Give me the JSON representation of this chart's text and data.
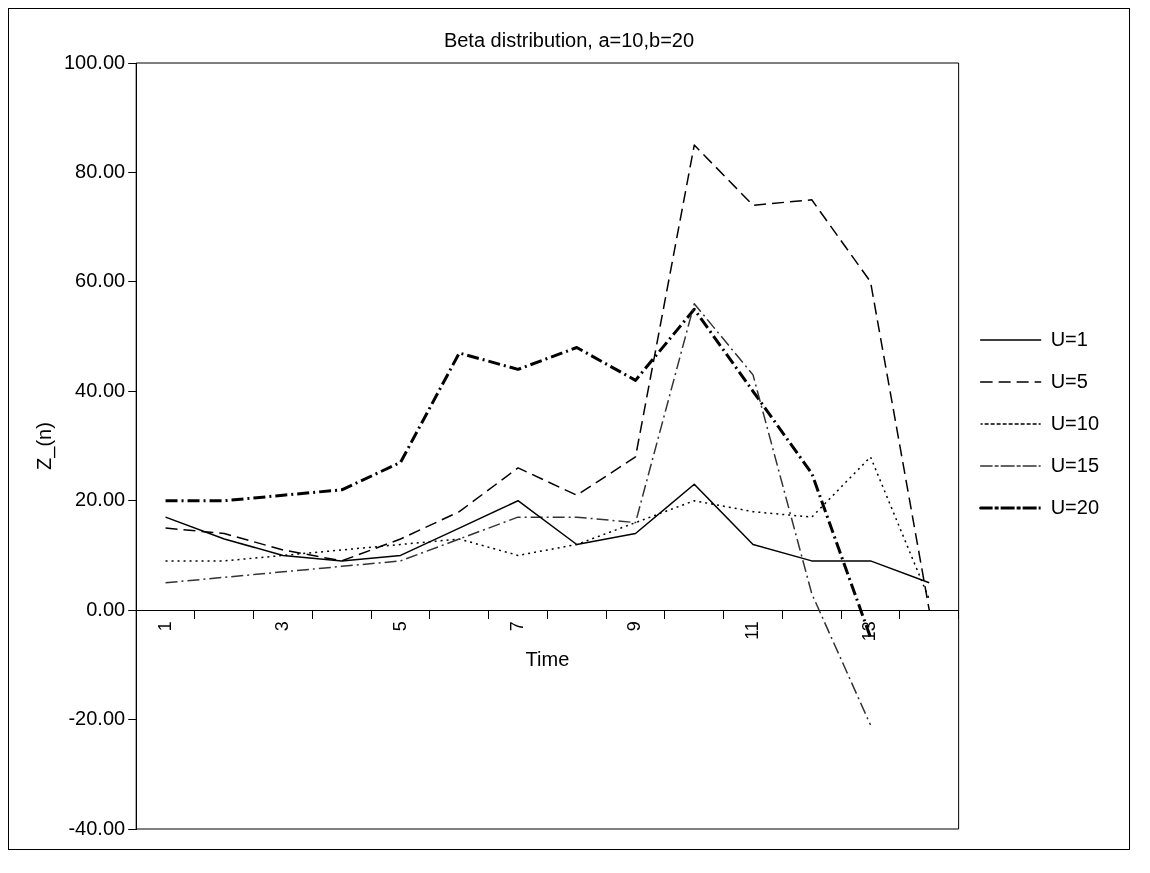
{
  "chart_data": {
    "type": "line",
    "title": "Beta distribution, a=10,b=20",
    "xlabel": "Time",
    "ylabel": "Z_(n)",
    "categories": [
      "1",
      null,
      "3",
      null,
      "5",
      null,
      "7",
      null,
      "9",
      null,
      "11",
      null,
      "13",
      null
    ],
    "ylim": [
      -40,
      100
    ],
    "yticks": [
      {
        "value": -40,
        "label": "-40.00"
      },
      {
        "value": -20,
        "label": "-20.00"
      },
      {
        "value": 0,
        "label": "0.00"
      },
      {
        "value": 20,
        "label": "20.00"
      },
      {
        "value": 40,
        "label": "40.00"
      },
      {
        "value": 60,
        "label": "60.00"
      },
      {
        "value": 80,
        "label": "80.00"
      },
      {
        "value": 100,
        "label": "100.00"
      }
    ],
    "grid": false,
    "legend": "right",
    "marker": "none",
    "series": [
      {
        "name": "U=1",
        "color": "#000000",
        "line_style": "solid",
        "values": [
          17,
          13,
          10,
          9,
          10,
          15,
          20,
          12,
          14,
          23,
          12,
          9,
          9,
          5
        ]
      },
      {
        "name": "U=5",
        "color": "#000000",
        "line_style": "dashed",
        "values": [
          15,
          14,
          11,
          9,
          13,
          18,
          26,
          21,
          28,
          85,
          74,
          75,
          60,
          0
        ]
      },
      {
        "name": "U=10",
        "color": "#000000",
        "line_style": "dotted",
        "values": [
          9,
          9,
          10,
          11,
          12,
          13,
          10,
          12,
          16,
          20,
          18,
          17,
          28,
          2
        ]
      },
      {
        "name": "U=15",
        "color": "#333333",
        "line_style": "dashdot",
        "values": [
          5,
          6,
          7,
          8,
          9,
          13,
          17,
          17,
          16,
          56,
          43,
          3,
          -21,
          null
        ]
      },
      {
        "name": "U=20",
        "color": "#000000",
        "line_style": "dashdot",
        "values": [
          20,
          20,
          21,
          22,
          27,
          47,
          44,
          48,
          42,
          55,
          40,
          25,
          -5,
          null
        ]
      }
    ]
  }
}
